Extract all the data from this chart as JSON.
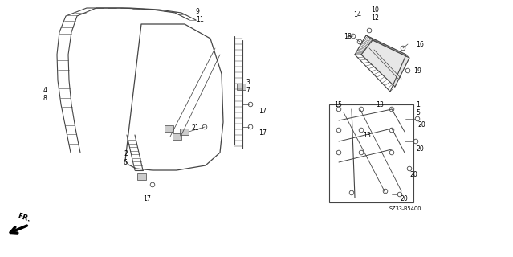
{
  "bg_color": "#ffffff",
  "dc": "#444444",
  "fig_w": 6.39,
  "fig_h": 3.2,
  "labels": [
    [
      "9",
      2.44,
      3.06
    ],
    [
      "11",
      2.44,
      2.96
    ],
    [
      "4",
      0.54,
      2.08
    ],
    [
      "8",
      0.54,
      1.98
    ],
    [
      "2",
      1.54,
      1.28
    ],
    [
      "6",
      1.54,
      1.18
    ],
    [
      "17",
      1.78,
      0.72
    ],
    [
      "21",
      2.38,
      1.6
    ],
    [
      "3",
      3.06,
      2.18
    ],
    [
      "7",
      3.06,
      2.08
    ],
    [
      "17",
      3.22,
      1.82
    ],
    [
      "17",
      3.22,
      1.55
    ],
    [
      "14",
      4.4,
      3.02
    ],
    [
      "10",
      4.62,
      3.08
    ],
    [
      "12",
      4.62,
      2.98
    ],
    [
      "18",
      4.28,
      2.74
    ],
    [
      "16",
      5.18,
      2.65
    ],
    [
      "19",
      5.15,
      2.32
    ],
    [
      "15",
      4.16,
      1.9
    ],
    [
      "13",
      4.68,
      1.9
    ],
    [
      "1",
      5.18,
      1.9
    ],
    [
      "5",
      5.18,
      1.8
    ],
    [
      "13",
      4.52,
      1.52
    ],
    [
      "20",
      5.2,
      1.65
    ],
    [
      "20",
      5.18,
      1.35
    ],
    [
      "20",
      5.1,
      1.03
    ],
    [
      "20",
      4.98,
      0.72
    ],
    [
      "SZ33-B5400",
      4.85,
      0.6
    ]
  ]
}
